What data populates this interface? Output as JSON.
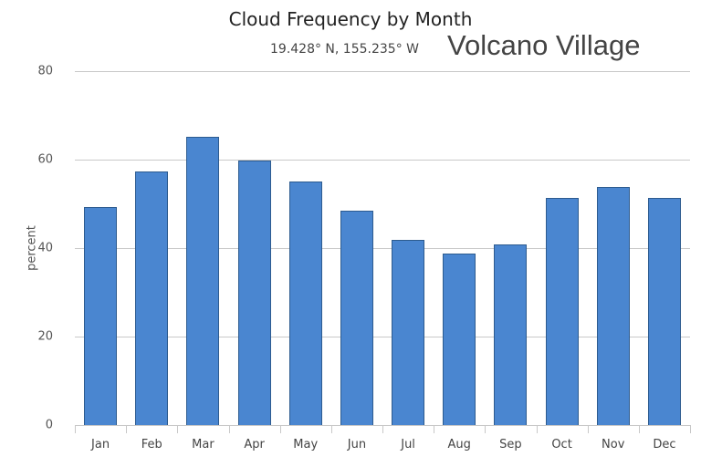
{
  "header": {
    "title": "Cloud Frequency by Month",
    "coordinates": "19.428° N, 155.235° W",
    "location": "Volcano Village"
  },
  "colors": {
    "bar_fill": "#4a86d0",
    "bar_border": "#2d5b8f",
    "grid": "#c8c8c8"
  },
  "chart_data": {
    "type": "bar",
    "title": "Cloud Frequency by Month",
    "subtitle": "19.428° N, 155.235° W",
    "annotation": "Volcano Village",
    "xlabel": "",
    "ylabel": "percent",
    "ylim": [
      0,
      80
    ],
    "yticks": [
      0,
      20,
      40,
      60,
      80
    ],
    "grid": true,
    "legend": null,
    "categories": [
      "Jan",
      "Feb",
      "Mar",
      "Apr",
      "May",
      "Jun",
      "Jul",
      "Aug",
      "Sep",
      "Oct",
      "Nov",
      "Dec"
    ],
    "values": [
      49.3,
      57.3,
      65.2,
      59.9,
      55.1,
      48.5,
      41.9,
      38.7,
      40.8,
      51.4,
      53.8,
      51.4
    ]
  }
}
